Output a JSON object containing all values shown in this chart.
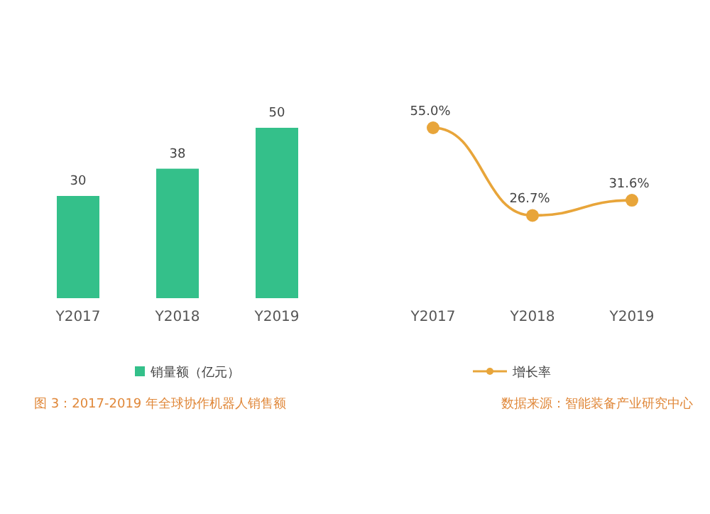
{
  "chart_data": [
    {
      "type": "bar",
      "categories": [
        "Y2017",
        "Y2018",
        "Y2019"
      ],
      "series": [
        {
          "name": "销量额（亿元）",
          "color": "#34c08a",
          "values": [
            30,
            38,
            50
          ]
        }
      ],
      "data_labels": true,
      "legend": "bottom",
      "annotations": [
        "图 3：2017-2019 年全球协作机器人销售额"
      ]
    },
    {
      "type": "line",
      "categories": [
        "Y2017",
        "Y2018",
        "Y2019"
      ],
      "series": [
        {
          "name": "增长率",
          "color": "#e8a53a",
          "values": [
            55.0,
            26.7,
            31.6
          ],
          "value_labels": [
            "55.0%",
            "26.7%",
            "31.6%"
          ]
        }
      ],
      "marker": "circle",
      "legend": "bottom",
      "annotations": [
        "数据来源：智能装备产业研究中心"
      ]
    }
  ]
}
